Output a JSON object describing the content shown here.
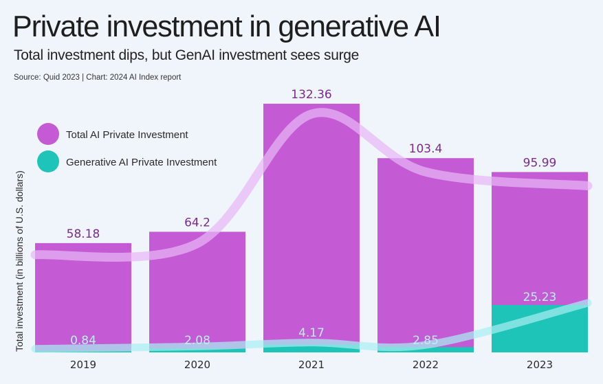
{
  "header": {
    "title": "Private investment in generative AI",
    "subtitle": "Total investment dips, but GenAI investment sees surge",
    "source": "Source: Quid 2023 | Chart: 2024 AI Index report"
  },
  "colors": {
    "background": "#eff5fa",
    "total": "#c45ad4",
    "total_label": "#7a2b8e",
    "total_trend": "#e7b7f5",
    "generative": "#1fc4b8",
    "generative_label": "#b9f0f4",
    "generative_trend": "#a8f0f2"
  },
  "chart_data": {
    "type": "bar",
    "title": "Private investment in generative AI",
    "subtitle": "Total investment dips, but GenAI investment sees surge",
    "xlabel": "",
    "ylabel": "Total investment (in billions of U.S. dollars)",
    "categories": [
      "2019",
      "2020",
      "2021",
      "2022",
      "2023"
    ],
    "series": [
      {
        "name": "Total AI Private Investment",
        "values": [
          58.18,
          64.2,
          132.36,
          103.4,
          95.99
        ],
        "labels": [
          "58.18",
          "64.2",
          "132.36",
          "103.4",
          "95.99"
        ]
      },
      {
        "name": "Generative AI Private Investment",
        "values": [
          0.84,
          2.08,
          4.17,
          2.85,
          25.23
        ],
        "labels": [
          "0.84",
          "2.08",
          "4.17",
          "2.85",
          "25.23"
        ]
      }
    ],
    "overlay": "smoothed trend line per series",
    "ylim": [
      0,
      132.36
    ],
    "grid": false,
    "legend_position": "top-left"
  }
}
